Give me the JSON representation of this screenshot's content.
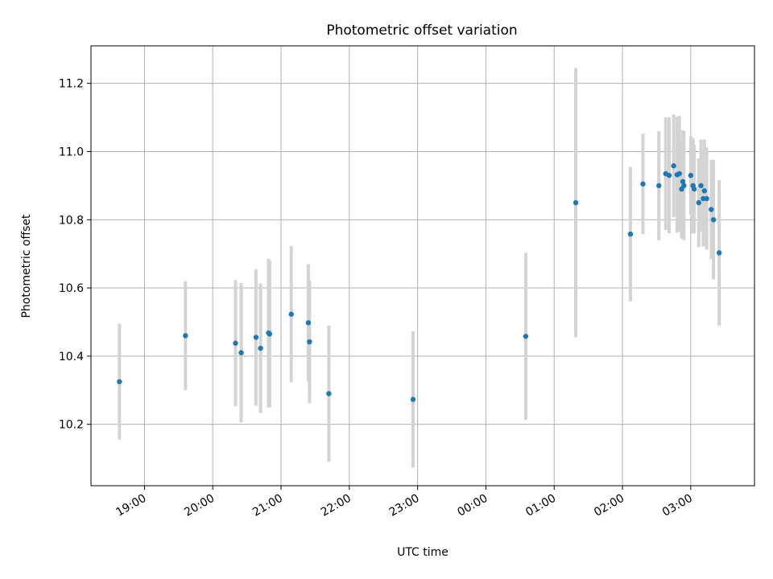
{
  "chart_data": {
    "type": "scatter",
    "title": "Photometric offset variation",
    "xlabel": "UTC time",
    "ylabel": "Photometric offset",
    "x_ticks": [
      {
        "t": "18:60",
        "label": "19:00"
      },
      {
        "t": "19:60",
        "label": "20:00"
      },
      {
        "t": "20:60",
        "label": "21:00"
      },
      {
        "t": "21:60",
        "label": "22:00"
      },
      {
        "t": "22:60",
        "label": "23:00"
      },
      {
        "t": "23:60",
        "label": "00:00"
      },
      {
        "t": "24:60",
        "label": "01:00"
      },
      {
        "t": "25:60",
        "label": "02:00"
      },
      {
        "t": "26:60",
        "label": "03:00"
      }
    ],
    "y_ticks": [
      10.2,
      10.4,
      10.6,
      10.8,
      11.0,
      11.2
    ],
    "xlim": [
      "18:13",
      "27:56"
    ],
    "ylim": [
      10.02,
      11.31
    ],
    "grid": true,
    "series": [
      {
        "points": [
          {
            "x": "18:38",
            "y": 10.325,
            "err": 0.17
          },
          {
            "x": "19:36",
            "y": 10.46,
            "err": 0.16
          },
          {
            "x": "20:20",
            "y": 10.438,
            "err": 0.185
          },
          {
            "x": "20:25",
            "y": 10.41,
            "err": 0.205
          },
          {
            "x": "20:38",
            "y": 10.455,
            "err": 0.2
          },
          {
            "x": "20:42",
            "y": 10.423,
            "err": 0.19
          },
          {
            "x": "20:49",
            "y": 10.468,
            "err": 0.218
          },
          {
            "x": "20:50",
            "y": 10.465,
            "err": 0.215
          },
          {
            "x": "21:09",
            "y": 10.523,
            "err": 0.2
          },
          {
            "x": "21:24",
            "y": 10.498,
            "err": 0.172
          },
          {
            "x": "21:25",
            "y": 10.442,
            "err": 0.18
          },
          {
            "x": "21:42",
            "y": 10.29,
            "err": 0.2
          },
          {
            "x": "22:56",
            "y": 10.273,
            "err": 0.2
          },
          {
            "x": "24:35",
            "y": 10.458,
            "err": 0.245
          },
          {
            "x": "25:19",
            "y": 10.85,
            "err": 0.395
          },
          {
            "x": "26:07",
            "y": 10.758,
            "err": 0.197
          },
          {
            "x": "26:18",
            "y": 10.905,
            "err": 0.147
          },
          {
            "x": "26:32",
            "y": 10.9,
            "err": 0.16
          },
          {
            "x": "26:38",
            "y": 10.935,
            "err": 0.165
          },
          {
            "x": "26:41",
            "y": 10.93,
            "err": 0.17
          },
          {
            "x": "26:45",
            "y": 10.958,
            "err": 0.15
          },
          {
            "x": "26:48",
            "y": 10.932,
            "err": 0.17
          },
          {
            "x": "26:50",
            "y": 10.935,
            "err": 0.17
          },
          {
            "x": "26:52",
            "y": 10.89,
            "err": 0.145
          },
          {
            "x": "26:53",
            "y": 10.912,
            "err": 0.15
          },
          {
            "x": "26:54",
            "y": 10.9,
            "err": 0.16
          },
          {
            "x": "27:00",
            "y": 10.93,
            "err": 0.115
          },
          {
            "x": "27:02",
            "y": 10.9,
            "err": 0.14
          },
          {
            "x": "27:03",
            "y": 10.89,
            "err": 0.13
          },
          {
            "x": "27:07",
            "y": 10.85,
            "err": 0.13
          },
          {
            "x": "27:09",
            "y": 10.9,
            "err": 0.135
          },
          {
            "x": "27:11",
            "y": 10.862,
            "err": 0.14
          },
          {
            "x": "27:12",
            "y": 10.885,
            "err": 0.15
          },
          {
            "x": "27:14",
            "y": 10.862,
            "err": 0.15
          },
          {
            "x": "27:18",
            "y": 10.83,
            "err": 0.145
          },
          {
            "x": "27:20",
            "y": 10.8,
            "err": 0.175
          },
          {
            "x": "27:25",
            "y": 10.703,
            "err": 0.213
          }
        ]
      }
    ]
  }
}
